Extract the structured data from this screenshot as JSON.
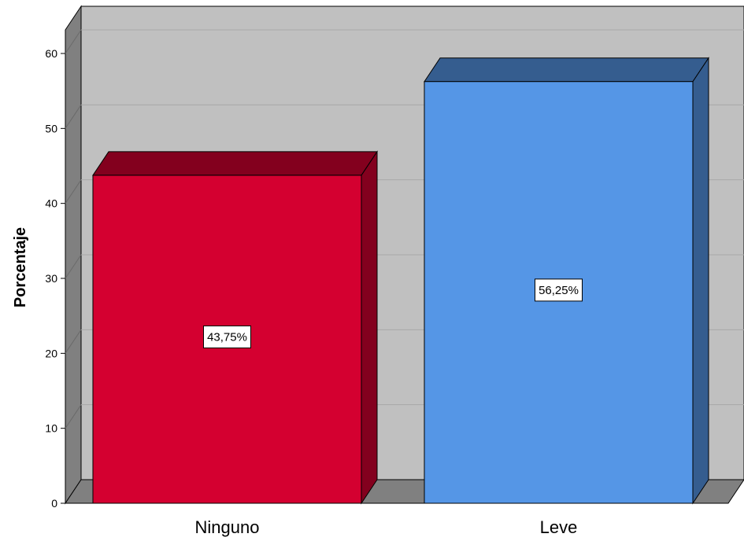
{
  "chart_data": {
    "type": "bar",
    "style": "3d",
    "categories": [
      "Ninguno",
      "Leve"
    ],
    "values": [
      43.75,
      56.25
    ],
    "data_labels": [
      "43,75%",
      "56,25%"
    ],
    "colors": [
      "#d40030",
      "#5596e6"
    ],
    "ylabel": "Porcentaje",
    "ylim": [
      0,
      60
    ],
    "yticks": [
      "0",
      "10",
      "20",
      "30",
      "40",
      "50",
      "60"
    ],
    "grid": true,
    "legend": "none",
    "wall_color": "#c0c0c0",
    "floor_color": "#808080"
  }
}
